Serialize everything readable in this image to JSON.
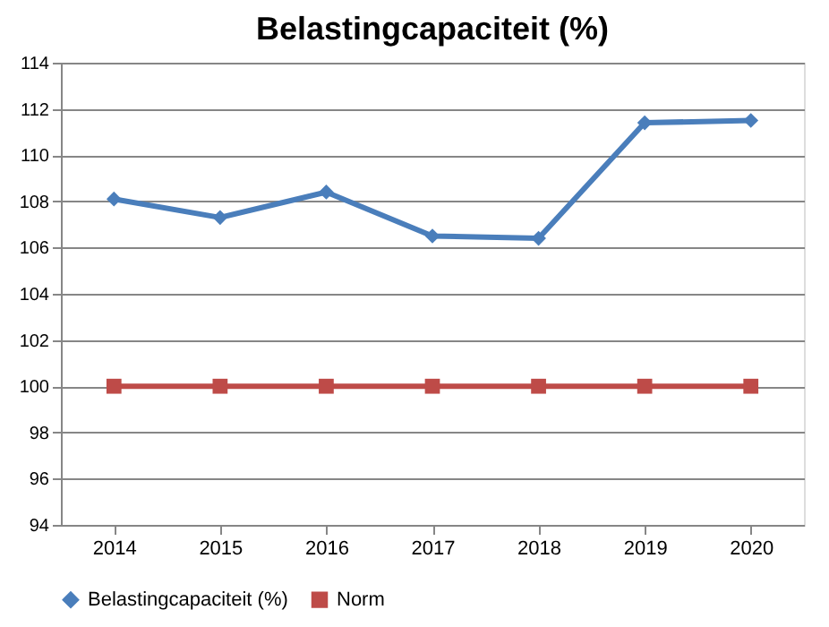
{
  "chart_data": {
    "type": "line",
    "title": "Belastingcapaciteit (%)",
    "categories": [
      "2014",
      "2015",
      "2016",
      "2017",
      "2018",
      "2019",
      "2020"
    ],
    "series": [
      {
        "name": "Belastingcapaciteit (%)",
        "color": "#4a7ebb",
        "marker": "diamond",
        "values": [
          108.1,
          107.3,
          108.4,
          106.5,
          106.4,
          111.4,
          111.5
        ]
      },
      {
        "name": "Norm",
        "color": "#be4b48",
        "marker": "square",
        "values": [
          100,
          100,
          100,
          100,
          100,
          100,
          100
        ]
      }
    ],
    "ylim": [
      94,
      114
    ],
    "yticks": [
      94,
      96,
      98,
      100,
      102,
      104,
      106,
      108,
      110,
      112,
      114
    ],
    "grid": "y",
    "legend": "bottom",
    "line_style": "solid"
  }
}
